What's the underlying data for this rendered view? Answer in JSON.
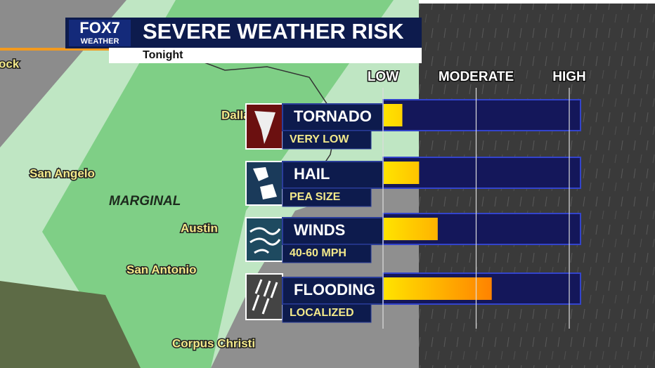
{
  "logo": {
    "name": "FOX7",
    "tagline": "WEATHER"
  },
  "map_labels": [
    "ock",
    "Dallas",
    "San Angelo",
    "MARGINAL",
    "Austin",
    "San Antonio",
    "Corpus Christi"
  ],
  "chart_data": {
    "type": "bar",
    "title": "SEVERE WEATHER RISK",
    "subtitle": "Tonight",
    "categories": [
      "TORNADO",
      "HAIL",
      "WINDS",
      "FLOODING"
    ],
    "descriptions": [
      "VERY LOW",
      "PEA SIZE",
      "40-60 MPH",
      "LOCALIZED"
    ],
    "values": [
      10,
      19,
      29,
      58
    ],
    "color": "#ffe400",
    "xlim": [
      0,
      100
    ],
    "xticks": [
      {
        "value": 0,
        "label": "LOW"
      },
      {
        "value": 50,
        "label": "MODERATE"
      },
      {
        "value": 100,
        "label": "HIGH"
      }
    ],
    "grid": true
  }
}
